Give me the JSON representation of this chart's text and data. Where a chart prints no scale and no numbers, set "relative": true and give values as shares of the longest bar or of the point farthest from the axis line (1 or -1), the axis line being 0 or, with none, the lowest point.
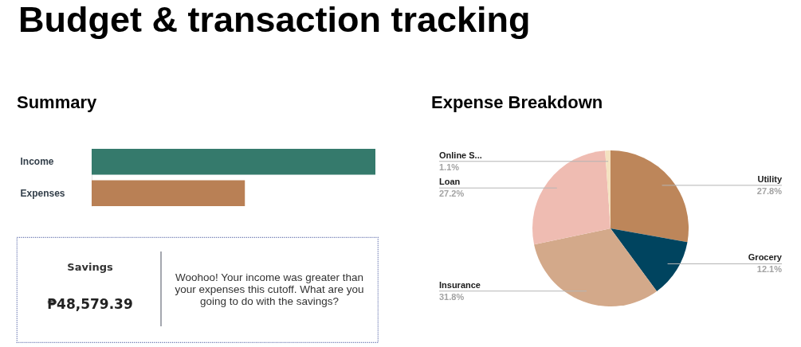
{
  "chart_data": [
    {
      "type": "other",
      "title": "Budget & transaction tracking"
    },
    {
      "type": "bar",
      "title": "Summary",
      "orientation": "horizontal",
      "relative": true,
      "categories": [
        "Income",
        "Expenses"
      ],
      "values": [
        1,
        0.54
      ],
      "colors": [
        "#357a6c",
        "#b98055"
      ]
    },
    {
      "type": "other",
      "title": "Savings",
      "annotations": [
        "₱48,579.39",
        "Woohoo! Your income was greater than your expenses this cutoff. What are you going to do with the savings?"
      ]
    },
    {
      "type": "pie",
      "title": "Expense Breakdown",
      "categories": [
        "Utility",
        "Grocery",
        "Insurance",
        "Loan",
        "Online S..."
      ],
      "values": [
        27.8,
        12.1,
        31.8,
        27.2,
        1.1
      ],
      "value_labels": [
        "27.8%",
        "12.1%",
        "31.8%",
        "27.2%",
        "1.1%"
      ],
      "colors": [
        "#bd865a",
        "#00445f",
        "#d3a98a",
        "#efbcb2",
        "#f4e2c0"
      ]
    }
  ]
}
